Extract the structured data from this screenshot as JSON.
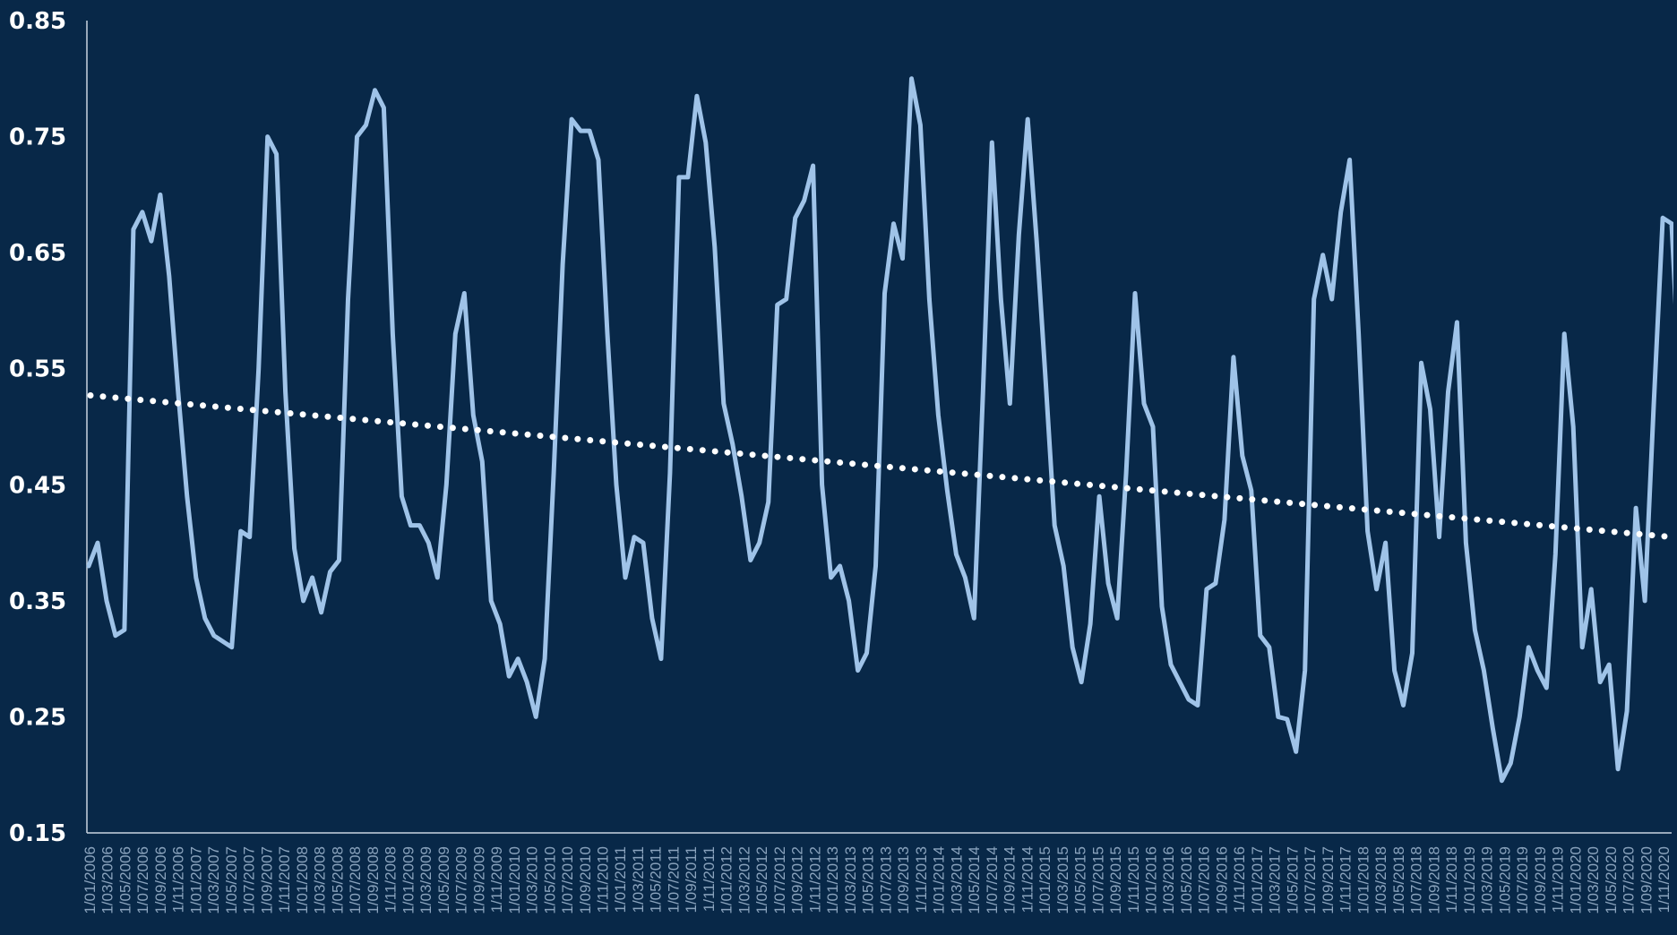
{
  "chart_data": {
    "type": "line",
    "title": "",
    "xlabel": "",
    "ylabel": "",
    "ylim": [
      0.15,
      0.85
    ],
    "yticks": [
      "0.15",
      "0.25",
      "0.35",
      "0.45",
      "0.55",
      "0.65",
      "0.75",
      "0.85"
    ],
    "grid": false,
    "legend": "none",
    "colors": {
      "background": "#082848",
      "series": "#9fc3e8",
      "trendline": "#ffffff",
      "axis": "#c8d4e0",
      "xtick": "#8aa3bd",
      "ytick": "#ffffff"
    },
    "x_tick_labels": [
      "1/01/2006",
      "1/03/2006",
      "1/05/2006",
      "1/07/2006",
      "1/09/2006",
      "1/11/2006",
      "1/01/2007",
      "1/03/2007",
      "1/05/2007",
      "1/07/2007",
      "1/09/2007",
      "1/11/2007",
      "1/01/2008",
      "1/03/2008",
      "1/05/2008",
      "1/07/2008",
      "1/09/2008",
      "1/11/2008",
      "1/01/2009",
      "1/03/2009",
      "1/05/2009",
      "1/07/2009",
      "1/09/2009",
      "1/11/2009",
      "1/01/2010",
      "1/03/2010",
      "1/05/2010",
      "1/07/2010",
      "1/09/2010",
      "1/11/2010",
      "1/01/2011",
      "1/03/2011",
      "1/05/2011",
      "1/07/2011",
      "1/09/2011",
      "1/11/2011",
      "1/01/2012",
      "1/03/2012",
      "1/05/2012",
      "1/07/2012",
      "1/09/2012",
      "1/11/2012",
      "1/01/2013",
      "1/03/2013",
      "1/05/2013",
      "1/07/2013",
      "1/09/2013",
      "1/11/2013",
      "1/01/2014",
      "1/03/2014",
      "1/05/2014",
      "1/07/2014",
      "1/09/2014",
      "1/11/2014",
      "1/01/2015",
      "1/03/2015",
      "1/05/2015",
      "1/07/2015",
      "1/09/2015",
      "1/11/2015",
      "1/01/2016",
      "1/03/2016",
      "1/05/2016",
      "1/07/2016",
      "1/09/2016",
      "1/11/2016",
      "1/01/2017",
      "1/03/2017",
      "1/05/2017",
      "1/07/2017",
      "1/09/2017",
      "1/11/2017",
      "1/01/2018",
      "1/03/2018",
      "1/05/2018",
      "1/07/2018",
      "1/09/2018",
      "1/11/2018",
      "1/01/2019",
      "1/03/2019",
      "1/05/2019",
      "1/07/2019",
      "1/09/2019",
      "1/11/2019",
      "1/01/2020",
      "1/03/2020",
      "1/05/2020",
      "1/07/2020",
      "1/09/2020",
      "1/11/2020"
    ],
    "series": [
      {
        "type": "line",
        "values": [
          0.38,
          0.4,
          0.35,
          0.32,
          0.325,
          0.67,
          0.685,
          0.66,
          0.7,
          0.63,
          0.53,
          0.44,
          0.37,
          0.335,
          0.32,
          0.315,
          0.31,
          0.41,
          0.405,
          0.55,
          0.75,
          0.735,
          0.53,
          0.395,
          0.35,
          0.37,
          0.34,
          0.375,
          0.385,
          0.61,
          0.75,
          0.76,
          0.79,
          0.775,
          0.58,
          0.44,
          0.415,
          0.415,
          0.4,
          0.37,
          0.45,
          0.58,
          0.615,
          0.51,
          0.47,
          0.35,
          0.33,
          0.285,
          0.3,
          0.28,
          0.25,
          0.3,
          0.46,
          0.64,
          0.765,
          0.755,
          0.755,
          0.73,
          0.58,
          0.45,
          0.37,
          0.405,
          0.4,
          0.335,
          0.3,
          0.46,
          0.715,
          0.715,
          0.785,
          0.745,
          0.655,
          0.52,
          0.485,
          0.44,
          0.385,
          0.4,
          0.435,
          0.605,
          0.61,
          0.68,
          0.695,
          0.725,
          0.45,
          0.37,
          0.38,
          0.35,
          0.29,
          0.305,
          0.38,
          0.615,
          0.675,
          0.645,
          0.8,
          0.76,
          0.61,
          0.51,
          0.445,
          0.39,
          0.37,
          0.335,
          0.53,
          0.745,
          0.61,
          0.52,
          0.665,
          0.765,
          0.66,
          0.54,
          0.415,
          0.38,
          0.31,
          0.28,
          0.33,
          0.44,
          0.365,
          0.335,
          0.46,
          0.615,
          0.52,
          0.5,
          0.345,
          0.295,
          0.28,
          0.265,
          0.26,
          0.36,
          0.365,
          0.42,
          0.56,
          0.475,
          0.445,
          0.32,
          0.31,
          0.25,
          0.248,
          0.22,
          0.29,
          0.61,
          0.648,
          0.61,
          0.685,
          0.73,
          0.58,
          0.41,
          0.36,
          0.4,
          0.29,
          0.26,
          0.305,
          0.555,
          0.515,
          0.405,
          0.53,
          0.59,
          0.4,
          0.325,
          0.29,
          0.24,
          0.195,
          0.21,
          0.25,
          0.31,
          0.29,
          0.275,
          0.39,
          0.58,
          0.5,
          0.31,
          0.36,
          0.28,
          0.295,
          0.205,
          0.255,
          0.43,
          0.35,
          0.52,
          0.68,
          0.675,
          0.52,
          0.5
        ]
      },
      {
        "type": "linear-trendline",
        "values": [
          0.527,
          0.405
        ]
      }
    ]
  }
}
